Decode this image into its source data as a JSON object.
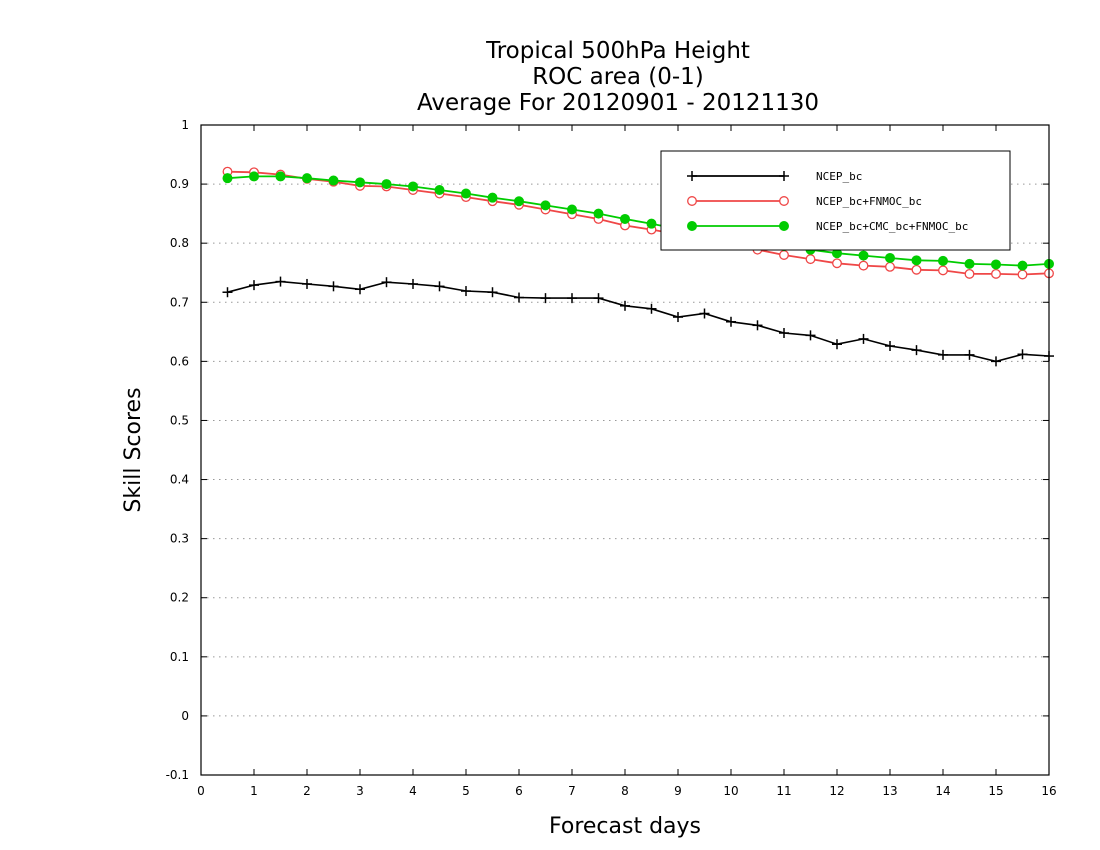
{
  "chart_data": {
    "type": "line",
    "title_lines": [
      "Tropical 500hPa Height",
      "ROC area (0-1)",
      "Average For 20120901 - 20121130"
    ],
    "xlabel": "Forecast days",
    "ylabel": "Skill Scores",
    "xlim": [
      0,
      16
    ],
    "ylim": [
      -0.1,
      1
    ],
    "x_ticks": [
      "0",
      "1",
      "2",
      "3",
      "4",
      "5",
      "6",
      "7",
      "8",
      "9",
      "10",
      "11",
      "12",
      "13",
      "14",
      "15",
      "16"
    ],
    "y_ticks": [
      "-0.1",
      "0",
      "0.1",
      "0.2",
      "0.3",
      "0.4",
      "0.5",
      "0.6",
      "0.7",
      "0.8",
      "0.9",
      "1"
    ],
    "grid": "horizontal-dotted",
    "legend_position": "top-right",
    "x": [
      0.5,
      1,
      1.5,
      2,
      2.5,
      3,
      3.5,
      4,
      4.5,
      5,
      5.5,
      6,
      6.5,
      7,
      7.5,
      8,
      8.5,
      9,
      9.5,
      10,
      10.5,
      11,
      11.5,
      12,
      12.5,
      13,
      13.5,
      14,
      14.5,
      15,
      15.5,
      16
    ],
    "series": [
      {
        "name": "NCEP_bc",
        "color": "#000000",
        "marker": "plus",
        "values": [
          0.717,
          0.729,
          0.735,
          0.731,
          0.727,
          0.722,
          0.734,
          0.731,
          0.727,
          0.719,
          0.717,
          0.708,
          0.707,
          0.707,
          0.707,
          0.694,
          0.689,
          0.675,
          0.681,
          0.667,
          0.661,
          0.648,
          0.644,
          0.629,
          0.638,
          0.626,
          0.619,
          0.611,
          0.611,
          0.6,
          0.612,
          0.609
        ]
      },
      {
        "name": "NCEP_bc+FNMOC_bc",
        "color": "#ef4747",
        "marker": "open-circle",
        "values": [
          0.921,
          0.92,
          0.916,
          0.909,
          0.904,
          0.897,
          0.896,
          0.89,
          0.884,
          0.878,
          0.871,
          0.865,
          0.857,
          0.849,
          0.841,
          0.83,
          0.823,
          0.815,
          0.807,
          0.798,
          0.789,
          0.78,
          0.773,
          0.766,
          0.762,
          0.76,
          0.755,
          0.754,
          0.748,
          0.748,
          0.747,
          0.749
        ]
      },
      {
        "name": "NCEP_bc+CMC_bc+FNMOC_bc",
        "color": "#00cc00",
        "marker": "filled-circle",
        "values": [
          0.91,
          0.913,
          0.913,
          0.91,
          0.906,
          0.903,
          0.9,
          0.896,
          0.89,
          0.884,
          0.877,
          0.871,
          0.864,
          0.857,
          0.85,
          0.841,
          0.833,
          0.824,
          0.816,
          0.808,
          0.801,
          0.795,
          0.789,
          0.783,
          0.779,
          0.775,
          0.771,
          0.77,
          0.765,
          0.764,
          0.762,
          0.765
        ]
      }
    ]
  }
}
